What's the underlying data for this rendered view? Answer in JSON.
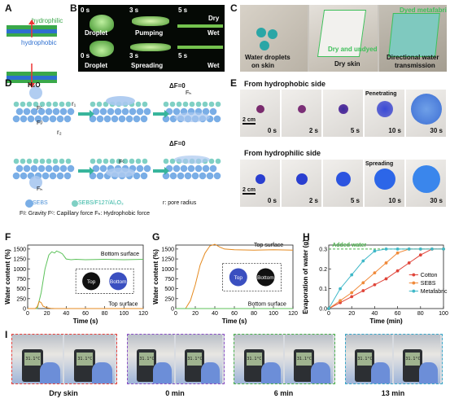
{
  "panels": {
    "A": {
      "label": "A",
      "hydrophilic": "hydrophilic",
      "hydrophobic": "hydrophobic"
    },
    "B": {
      "label": "B",
      "top_row": [
        {
          "time": "0 s",
          "caption": "Droplet"
        },
        {
          "time": "3 s",
          "caption": "Pumping"
        },
        {
          "time": "5 s",
          "caption": "Dry",
          "caption2": "Wet"
        }
      ],
      "bottom_row": [
        {
          "time": "0 s",
          "caption": "Droplet"
        },
        {
          "time": "3 s",
          "caption": "Spreading"
        },
        {
          "time": "5 s",
          "caption": "Wet"
        }
      ]
    },
    "C": {
      "label": "C",
      "cap1_line1": "Water droplets",
      "cap1_line2": "on skin",
      "cap2": "Dry and undyed",
      "cap3": "Dry skin",
      "cap4": "Dyed metafabric",
      "cap5_line1": "Directional water",
      "cap5_line2": "transmission"
    },
    "D": {
      "label": "D",
      "h2o": "H₂O",
      "r1": "r₁",
      "r2": "r₂",
      "fc": "Fᶜ",
      "fg": "Fᵍ",
      "fh": "Fₕ",
      "df0": "ΔF=0",
      "legend_sebs": "SEBS",
      "legend_mix": "SEBS/F127/Al₂O₃",
      "legend_r": "r: pore radius",
      "legend_forces": "Fᵍ: Gravity  Fᶜ: Capillary force  Fₕ: Hydrophobic force"
    },
    "E": {
      "label": "E",
      "row1_title": "From hydrophobic side",
      "row2_title": "From hydrophilic side",
      "scale": "2 cm",
      "times": [
        "0 s",
        "2 s",
        "5 s",
        "10 s",
        "30 s"
      ],
      "row1_event": "Penetrating",
      "row2_event": "Spreading"
    },
    "F": {
      "label": "F",
      "ylabel": "Water content (%)",
      "xlabel": "Time (s)",
      "series1": "Bottom surface",
      "series2": "Top surface",
      "inset_top": "Top",
      "inset_bottom": "Bottom"
    },
    "G": {
      "label": "G",
      "ylabel": "Water content (%)",
      "xlabel": "Time (s)",
      "series1": "Top surface",
      "series2": "Bottom surface",
      "inset_top": "Top",
      "inset_bottom": "Bottom"
    },
    "H": {
      "label": "H",
      "ylabel": "Evaporation of water (g)",
      "xlabel": "Time (min)",
      "added": "Added water"
    },
    "I": {
      "label": "I",
      "captions": [
        "Dry skin",
        "0 min",
        "6 min",
        "13 min"
      ],
      "meter_text": "31.1°C",
      "frame_colors": [
        "#e8413c",
        "#8a4fc4",
        "#49b04a",
        "#3aa7c9"
      ]
    }
  },
  "chart_data": [
    {
      "type": "line",
      "panel": "F",
      "xlim": [
        0,
        120
      ],
      "ylim": [
        0,
        1600
      ],
      "xticks": [
        0,
        20,
        40,
        60,
        80,
        100,
        120
      ],
      "yticks": [
        0,
        250,
        500,
        750,
        1000,
        1250,
        1500
      ],
      "series": [
        {
          "name": "Bottom surface",
          "color": "#5cc25a",
          "x": [
            0,
            10,
            14,
            18,
            22,
            25,
            28,
            30,
            33,
            36,
            40,
            45,
            50,
            60,
            80,
            100,
            120
          ],
          "y": [
            0,
            0,
            400,
            1000,
            1350,
            1430,
            1400,
            1450,
            1420,
            1380,
            1250,
            1230,
            1240,
            1230,
            1240,
            1230,
            1240
          ]
        },
        {
          "name": "Top surface",
          "color": "#e58a1f",
          "x": [
            0,
            8,
            10,
            12,
            14,
            16,
            20,
            24,
            28,
            40,
            60,
            80,
            100,
            120
          ],
          "y": [
            0,
            0,
            50,
            180,
            150,
            60,
            20,
            5,
            0,
            0,
            0,
            0,
            0,
            0
          ]
        }
      ]
    },
    {
      "type": "line",
      "panel": "G",
      "xlim": [
        0,
        120
      ],
      "ylim": [
        0,
        1600
      ],
      "xticks": [
        0,
        20,
        40,
        60,
        80,
        100,
        120
      ],
      "yticks": [
        0,
        250,
        500,
        750,
        1000,
        1250,
        1500
      ],
      "series": [
        {
          "name": "Top surface",
          "color": "#e58a1f",
          "x": [
            0,
            10,
            15,
            20,
            25,
            30,
            35,
            40,
            45,
            50,
            60,
            80,
            100,
            120
          ],
          "y": [
            0,
            0,
            200,
            600,
            1100,
            1400,
            1580,
            1620,
            1550,
            1500,
            1480,
            1470,
            1480,
            1470
          ]
        },
        {
          "name": "Bottom surface",
          "color": "#5cc25a",
          "x": [
            0,
            20,
            40,
            60,
            80,
            100,
            120
          ],
          "y": [
            0,
            0,
            0,
            0,
            0,
            0,
            0
          ]
        }
      ]
    },
    {
      "type": "line",
      "panel": "H",
      "xlim": [
        0,
        100
      ],
      "ylim": [
        0,
        0.32
      ],
      "xticks": [
        0,
        20,
        40,
        60,
        80,
        100
      ],
      "yticks": [
        0.0,
        0.1,
        0.2,
        0.3
      ],
      "reference_line": 0.3,
      "series": [
        {
          "name": "Cotton",
          "color": "#e0453a",
          "x": [
            0,
            10,
            20,
            30,
            40,
            50,
            60,
            70,
            80,
            90,
            100
          ],
          "y": [
            0,
            0.03,
            0.06,
            0.09,
            0.12,
            0.15,
            0.19,
            0.23,
            0.27,
            0.3,
            0.3
          ]
        },
        {
          "name": "SEBS",
          "color": "#f08a3a",
          "x": [
            0,
            10,
            20,
            30,
            40,
            50,
            60,
            70,
            80,
            90,
            100
          ],
          "y": [
            0,
            0.04,
            0.08,
            0.13,
            0.18,
            0.23,
            0.28,
            0.3,
            0.3,
            0.3,
            0.3
          ]
        },
        {
          "name": "Metafabric",
          "color": "#3fb8c8",
          "x": [
            0,
            10,
            20,
            30,
            40,
            50,
            60,
            70,
            80,
            90,
            100
          ],
          "y": [
            0,
            0.1,
            0.17,
            0.24,
            0.29,
            0.3,
            0.3,
            0.3,
            0.3,
            0.3,
            0.3
          ]
        }
      ]
    }
  ]
}
